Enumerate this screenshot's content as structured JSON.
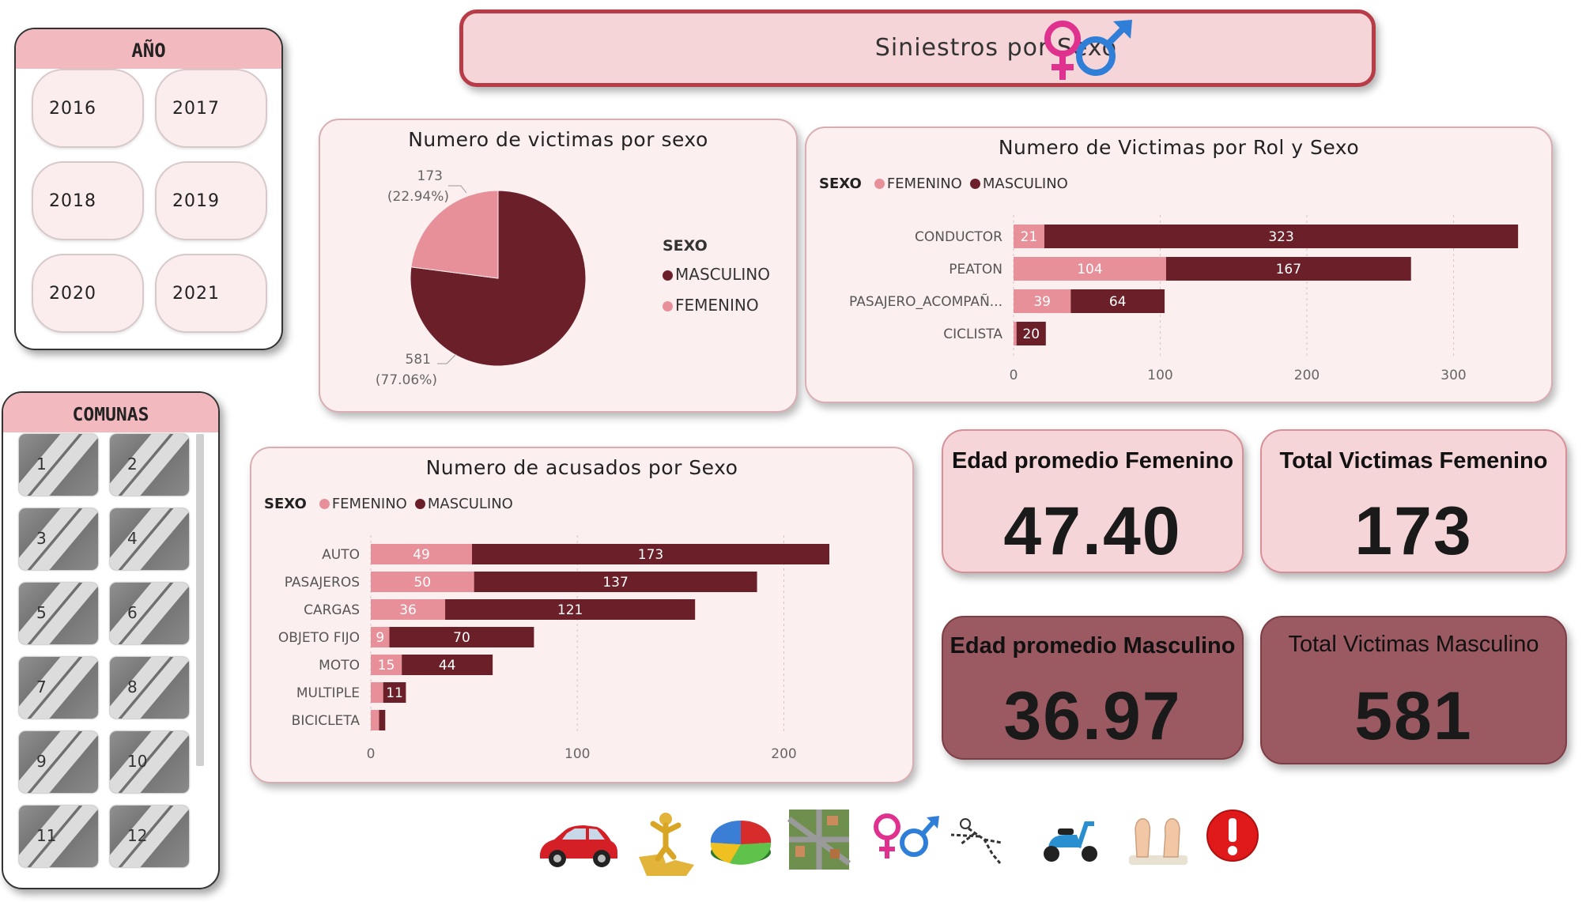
{
  "title": "Siniestros por Sexo",
  "colors": {
    "femenino": "#e8909a",
    "masculino": "#6b1f28",
    "accent": "#b73c47"
  },
  "year_slicer": {
    "header": "AÑO",
    "years": [
      "2016",
      "2017",
      "2018",
      "2019",
      "2020",
      "2021"
    ]
  },
  "comunas_slicer": {
    "header": "COMUNAS",
    "items": [
      "1",
      "2",
      "3",
      "4",
      "5",
      "6",
      "7",
      "8",
      "9",
      "10",
      "11",
      "12"
    ]
  },
  "chart_data": [
    {
      "type": "pie",
      "title": "Numero de victimas por sexo",
      "legend_title": "SEXO",
      "legend_placement": "right",
      "series": [
        {
          "name": "MASCULINO",
          "value": 581,
          "label_value": "581",
          "label_pct": "(77.06%)"
        },
        {
          "name": "FEMENINO",
          "value": 173,
          "label_value": "173",
          "label_pct": "(22.94%)"
        }
      ]
    },
    {
      "type": "bar",
      "stacked": true,
      "orientation": "horizontal",
      "title": "Numero de Victimas por Rol y Sexo",
      "legend_title": "SEXO",
      "legend_placement": "top-left",
      "categories": [
        "CONDUCTOR",
        "PEATON",
        "PASAJERO_ACOMPAÑ...",
        "CICLISTA"
      ],
      "series": [
        {
          "name": "FEMENINO",
          "values": [
            21,
            104,
            39,
            2
          ]
        },
        {
          "name": "MASCULINO",
          "values": [
            323,
            167,
            64,
            20
          ]
        }
      ],
      "data_labels": {
        "FEMENINO": [
          "21",
          "104",
          "39",
          ""
        ],
        "MASCULINO": [
          "323",
          "167",
          "64",
          "20"
        ]
      },
      "xlim": [
        0,
        345
      ],
      "xticks": [
        "0",
        "100",
        "200",
        "300"
      ],
      "grid": true
    },
    {
      "type": "bar",
      "stacked": true,
      "orientation": "horizontal",
      "title": "Numero de acusados por Sexo",
      "legend_title": "SEXO",
      "legend_placement": "top-left",
      "categories": [
        "AUTO",
        "PASAJEROS",
        "CARGAS",
        "OBJETO FIJO",
        "MOTO",
        "MULTIPLE",
        "BICICLETA"
      ],
      "series": [
        {
          "name": "FEMENINO",
          "values": [
            49,
            50,
            36,
            9,
            15,
            6,
            4
          ]
        },
        {
          "name": "MASCULINO",
          "values": [
            173,
            137,
            121,
            70,
            44,
            11,
            3
          ]
        }
      ],
      "data_labels": {
        "FEMENINO": [
          "49",
          "50",
          "36",
          "9",
          "15",
          "",
          ""
        ],
        "MASCULINO": [
          "173",
          "137",
          "121",
          "70",
          "44",
          "11",
          ""
        ]
      },
      "xlim": [
        0,
        222
      ],
      "xticks": [
        "0",
        "100",
        "200"
      ],
      "grid": true
    }
  ],
  "kpis": {
    "edad_fem": {
      "title": "Edad promedio Femenino",
      "value": "47.40"
    },
    "total_fem": {
      "title": "Total Victimas Femenino",
      "value": "173"
    },
    "edad_masc": {
      "title": "Edad promedio Masculino",
      "value": "36.97"
    },
    "total_masc": {
      "title": "Total Victimas Masculino",
      "value": "581"
    }
  },
  "nav_icons": [
    "car-icon",
    "puzzle-person-icon",
    "pie-chart-icon",
    "city-map-icon",
    "gender-symbols-icon",
    "body-outline-icon",
    "scooter-icon",
    "feet-icon",
    "alert-icon"
  ]
}
